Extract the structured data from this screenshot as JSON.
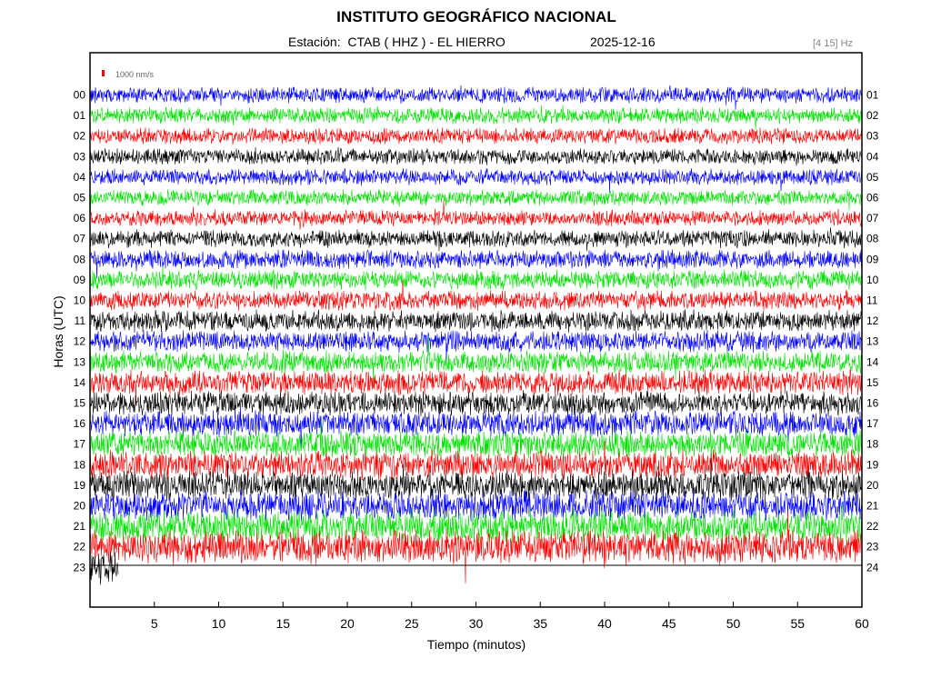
{
  "header": {
    "title": "INSTITUTO GEOGRÁFICO NACIONAL",
    "station_label": "Estación:  CTAB ( HHZ ) - EL HIERRO",
    "date": "2025-12-16",
    "band": "[4 15] Hz"
  },
  "scale_label": "1000 nm/s",
  "colors": {
    "cycle": [
      "#0000ff",
      "#00e000",
      "#ff0000",
      "#000000"
    ],
    "scale_bar": "#ff0000",
    "band_text": "#888888"
  },
  "chart_data": {
    "type": "seismogram",
    "title": "INSTITUTO GEOGRÁFICO NACIONAL",
    "xlabel": "Tiempo (minutos)",
    "ylabel": "Horas (UTC)",
    "xlim": [
      0,
      60
    ],
    "x_ticks": [
      "5",
      "10",
      "15",
      "20",
      "25",
      "30",
      "35",
      "40",
      "45",
      "50",
      "55",
      "60"
    ],
    "left_labels": [
      "00",
      "01",
      "02",
      "03",
      "04",
      "05",
      "06",
      "07",
      "08",
      "09",
      "10",
      "11",
      "12",
      "13",
      "14",
      "15",
      "16",
      "17",
      "18",
      "19",
      "20",
      "21",
      "22",
      "23"
    ],
    "right_labels": [
      "01",
      "02",
      "03",
      "04",
      "05",
      "06",
      "07",
      "08",
      "09",
      "10",
      "11",
      "12",
      "13",
      "14",
      "15",
      "16",
      "17",
      "18",
      "19",
      "20",
      "21",
      "22",
      "23",
      "24"
    ],
    "series": [
      {
        "hour": "00",
        "color": "#0000ff",
        "noise_level": 0.35,
        "end_minute": 60
      },
      {
        "hour": "01",
        "color": "#00e000",
        "noise_level": 0.35,
        "end_minute": 60
      },
      {
        "hour": "02",
        "color": "#ff0000",
        "noise_level": 0.35,
        "end_minute": 60
      },
      {
        "hour": "03",
        "color": "#000000",
        "noise_level": 0.35,
        "end_minute": 60
      },
      {
        "hour": "04",
        "color": "#0000ff",
        "noise_level": 0.35,
        "end_minute": 60
      },
      {
        "hour": "05",
        "color": "#00e000",
        "noise_level": 0.35,
        "end_minute": 60
      },
      {
        "hour": "06",
        "color": "#ff0000",
        "noise_level": 0.35,
        "end_minute": 60
      },
      {
        "hour": "07",
        "color": "#000000",
        "noise_level": 0.45,
        "end_minute": 60
      },
      {
        "hour": "08",
        "color": "#0000ff",
        "noise_level": 0.5,
        "end_minute": 60
      },
      {
        "hour": "09",
        "color": "#00e000",
        "noise_level": 0.5,
        "end_minute": 60
      },
      {
        "hour": "10",
        "color": "#ff0000",
        "noise_level": 0.55,
        "end_minute": 60
      },
      {
        "hour": "11",
        "color": "#000000",
        "noise_level": 0.65,
        "end_minute": 60
      },
      {
        "hour": "12",
        "color": "#0000ff",
        "noise_level": 0.65,
        "end_minute": 60
      },
      {
        "hour": "13",
        "color": "#00e000",
        "noise_level": 0.7,
        "end_minute": 60
      },
      {
        "hour": "14",
        "color": "#ff0000",
        "noise_level": 0.8,
        "end_minute": 60
      },
      {
        "hour": "15",
        "color": "#000000",
        "noise_level": 0.8,
        "end_minute": 60
      },
      {
        "hour": "16",
        "color": "#0000ff",
        "noise_level": 0.85,
        "end_minute": 60
      },
      {
        "hour": "17",
        "color": "#00e000",
        "noise_level": 0.95,
        "end_minute": 60
      },
      {
        "hour": "18",
        "color": "#ff0000",
        "noise_level": 1.0,
        "end_minute": 60
      },
      {
        "hour": "19",
        "color": "#000000",
        "noise_level": 1.05,
        "end_minute": 60
      },
      {
        "hour": "20",
        "color": "#0000ff",
        "noise_level": 1.1,
        "end_minute": 60
      },
      {
        "hour": "21",
        "color": "#00e000",
        "noise_level": 1.2,
        "end_minute": 60
      },
      {
        "hour": "22",
        "color": "#ff0000",
        "noise_level": 1.3,
        "end_minute": 60
      },
      {
        "hour": "23",
        "color": "#000000",
        "noise_level": 1.3,
        "end_minute": 2.2
      }
    ]
  }
}
